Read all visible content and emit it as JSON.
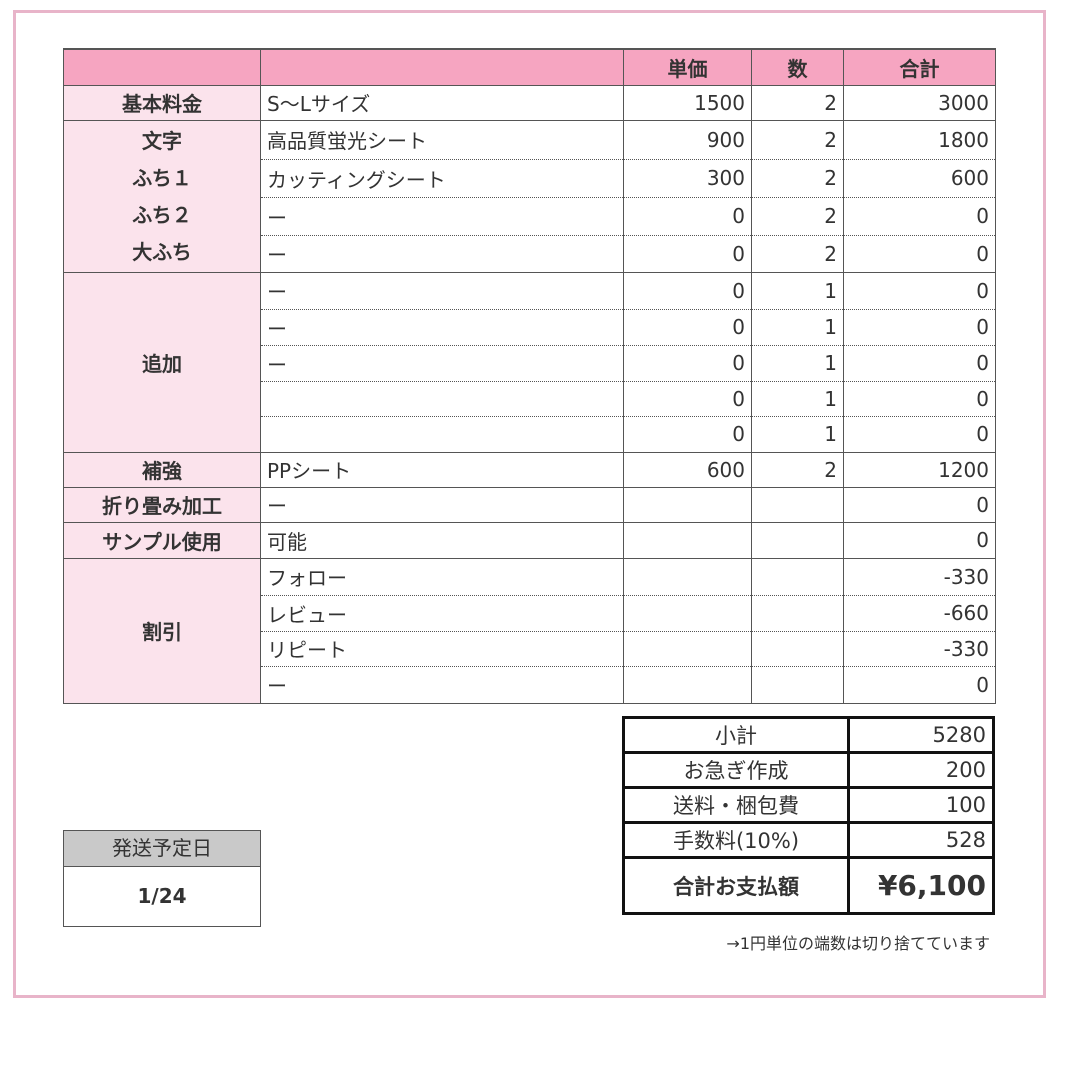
{
  "colors": {
    "header_pink": "#f6a5c1",
    "label_pink": "#fbe3ec",
    "frame": "#e8b4c9",
    "ship_header": "#c9c9c9"
  },
  "header": {
    "col1": "",
    "col2": "",
    "price": "単価",
    "qty": "数",
    "total": "合計"
  },
  "groups": [
    {
      "label": [
        "基本料金"
      ],
      "rows": [
        [
          "S～Lサイズ",
          "1500",
          "2",
          "3000"
        ]
      ]
    },
    {
      "label": [
        "文字",
        "ふち１",
        "ふち２",
        "大ふち"
      ],
      "rows": [
        [
          "高品質蛍光シート",
          "900",
          "2",
          "1800"
        ],
        [
          "カッティングシート",
          "300",
          "2",
          "600"
        ],
        [
          "ー",
          "0",
          "2",
          "0"
        ],
        [
          "ー",
          "0",
          "2",
          "0"
        ]
      ]
    },
    {
      "label": [
        "追加"
      ],
      "rows": [
        [
          "ー",
          "0",
          "1",
          "0"
        ],
        [
          "ー",
          "0",
          "1",
          "0"
        ],
        [
          "ー",
          "0",
          "1",
          "0"
        ],
        [
          "",
          "0",
          "1",
          "0"
        ],
        [
          "",
          "0",
          "1",
          "0"
        ]
      ]
    },
    {
      "label": [
        "補強"
      ],
      "rows": [
        [
          "PPシート",
          "600",
          "2",
          "1200"
        ]
      ]
    },
    {
      "label": [
        "折り畳み加工"
      ],
      "rows": [
        [
          "ー",
          "",
          "",
          "0"
        ]
      ]
    },
    {
      "label": [
        "サンプル使用"
      ],
      "rows": [
        [
          "可能",
          "",
          "",
          "0"
        ]
      ]
    },
    {
      "label": [
        "割引"
      ],
      "rows": [
        [
          "フォロー",
          "",
          "",
          "-330"
        ],
        [
          "レビュー",
          "",
          "",
          "-660"
        ],
        [
          "リピート",
          "",
          "",
          "-330"
        ],
        [
          "ー",
          "",
          "",
          "0"
        ]
      ]
    }
  ],
  "summary": [
    {
      "label": "小計",
      "value": "5280"
    },
    {
      "label": "お急ぎ作成",
      "value": "200"
    },
    {
      "label": "送料・梱包費",
      "value": "100"
    },
    {
      "label": "手数料(10%)",
      "value": "528"
    },
    {
      "label": "合計お支払額",
      "value": "¥6,100"
    }
  ],
  "note": "→1円単位の端数は切り捨てています",
  "ship": {
    "label": "発送予定日",
    "date": "1/24"
  }
}
